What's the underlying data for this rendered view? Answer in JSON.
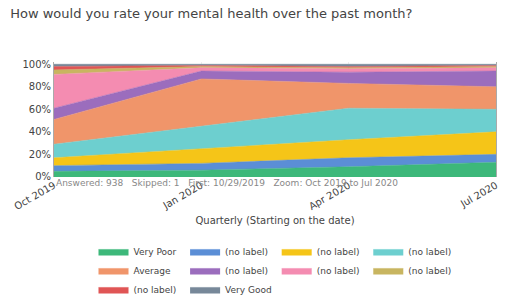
{
  "chart_data": {
    "type": "area",
    "title": "How would you rate your mental health over the past month?",
    "subtitle": "Answered: 938   Skipped: 1   First: 10/29/2019   Zoom: Oct 2019 to Jul 2020",
    "xlabel": "Quarterly (Starting on the date)",
    "categories": [
      "Oct 2019",
      "Jan 2020",
      "Apr 2020",
      "Jul 2020"
    ],
    "series": [
      {
        "name": "Very Poor",
        "color": "#3db87a",
        "values": [
          5,
          6,
          9,
          13
        ]
      },
      {
        "name": "(no label)",
        "color": "#5b8ed6",
        "values": [
          5,
          6,
          8,
          7
        ]
      },
      {
        "name": "(no label)",
        "color": "#f5c518",
        "values": [
          7,
          13,
          16,
          20
        ]
      },
      {
        "name": "(no label)",
        "color": "#6dcfcf",
        "values": [
          12,
          20,
          28,
          20
        ]
      },
      {
        "name": "Average",
        "color": "#f0956a",
        "values": [
          22,
          42,
          22,
          20
        ]
      },
      {
        "name": "(no label)",
        "color": "#9b6dbd",
        "values": [
          10,
          7,
          10,
          14
        ]
      },
      {
        "name": "(no label)",
        "color": "#f48cb1",
        "values": [
          30,
          3,
          3,
          3
        ]
      },
      {
        "name": "(no label)",
        "color": "#c8b560",
        "values": [
          4,
          1,
          1,
          1
        ]
      },
      {
        "name": "(no label)",
        "color": "#e05555",
        "values": [
          3,
          1,
          1,
          1
        ]
      },
      {
        "name": "Very Good",
        "color": "#778899",
        "values": [
          2,
          1,
          2,
          1
        ]
      }
    ],
    "stacked": true,
    "ylim": [
      0,
      102
    ],
    "yticks": [
      {
        "value": 0,
        "label": "0%"
      },
      {
        "value": 20,
        "label": "20%"
      },
      {
        "value": 40,
        "label": "40%"
      },
      {
        "value": 60,
        "label": "60%"
      },
      {
        "value": 80,
        "label": "80%"
      },
      {
        "value": 100,
        "label": "100%"
      }
    ],
    "grid": true,
    "legend": "bottom"
  }
}
